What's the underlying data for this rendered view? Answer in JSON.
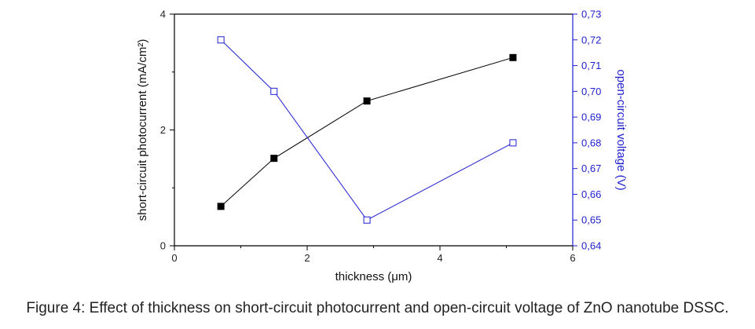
{
  "figure": {
    "caption": "Figure 4: Effect of thickness on short-circuit photocurrent and open-circuit voltage of ZnO nanotube DSSC."
  },
  "colors": {
    "left_series": "#000000",
    "right_series": "#1f1fcf"
  },
  "chart_data": {
    "type": "line",
    "title": "",
    "xlabel": "thickness (μm)",
    "ylabel": "short-circuit photocurrent (mA/cm²)",
    "y2label": "open-circuit voltage (V)",
    "xlim": [
      0,
      6
    ],
    "ylim": [
      0,
      4
    ],
    "y2lim": [
      0.64,
      0.73
    ],
    "x_ticks": [
      "0",
      "2",
      "4",
      "6"
    ],
    "y_ticks": [
      "0",
      "2",
      "4"
    ],
    "y2_ticks": [
      "0,64",
      "0,65",
      "0,66",
      "0,67",
      "0,68",
      "0,69",
      "0,70",
      "0,71",
      "0,72",
      "0,73"
    ],
    "grid": false,
    "legend": "none",
    "series": [
      {
        "axis": "left",
        "marker": "filled-square",
        "color": "#000000",
        "x": [
          0.7,
          1.5,
          2.9,
          5.1
        ],
        "values": [
          0.68,
          1.51,
          2.5,
          3.25
        ]
      },
      {
        "axis": "right",
        "marker": "open-square",
        "color": "#1f1fcf",
        "x": [
          0.7,
          1.5,
          2.9,
          5.1
        ],
        "values": [
          0.72,
          0.7,
          0.65,
          0.68
        ]
      }
    ]
  }
}
